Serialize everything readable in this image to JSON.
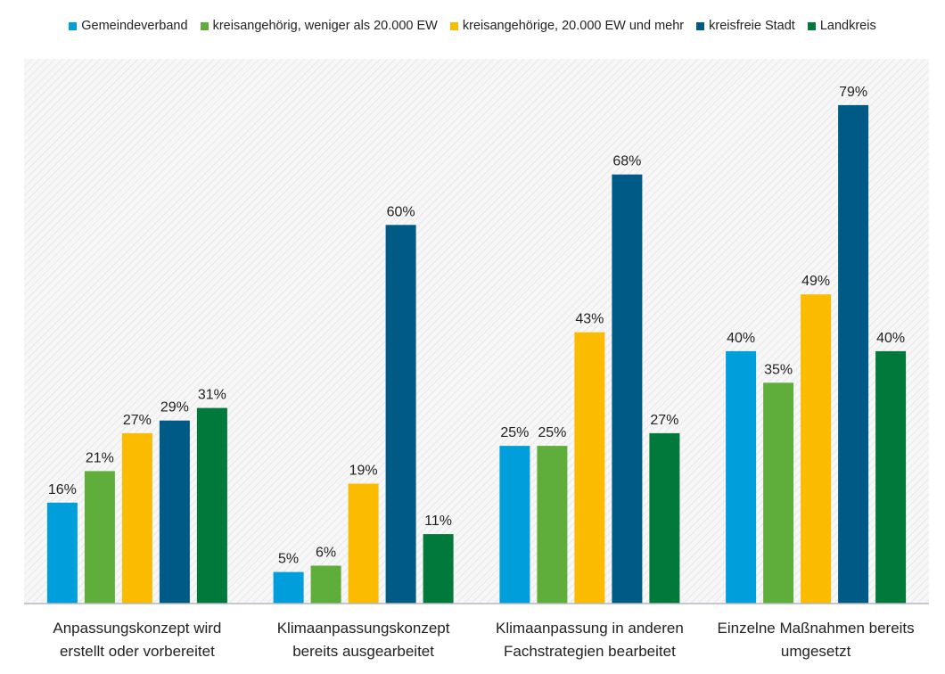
{
  "chart_data": {
    "type": "bar",
    "categories": [
      [
        "Anpassungskonzept wird",
        "erstellt oder vorbereitet"
      ],
      [
        "Klimaanpassungskonzept",
        "bereits ausgearbeitet"
      ],
      [
        "Klimaanpassung in anderen",
        "Fachstrategien bearbeitet"
      ],
      [
        "Einzelne Maßnahmen bereits",
        "umgesetzt"
      ]
    ],
    "series": [
      {
        "name": "Gemeindeverband",
        "color": "#009fdb",
        "values": [
          16,
          5,
          25,
          40
        ]
      },
      {
        "name": "kreisangehörig, weniger als 20.000 EW",
        "color": "#5fae3b",
        "values": [
          21,
          6,
          25,
          35
        ]
      },
      {
        "name": "kreisangehörige, 20.000 EW und mehr",
        "color": "#fbbb00",
        "values": [
          27,
          19,
          43,
          49
        ]
      },
      {
        "name": "kreisfreie Stadt",
        "color": "#005a86",
        "values": [
          29,
          60,
          68,
          79
        ]
      },
      {
        "name": "Landkreis",
        "color": "#00793a",
        "values": [
          31,
          11,
          27,
          40
        ]
      }
    ],
    "value_suffix": "%",
    "ylim": [
      0,
      90
    ],
    "grid": false,
    "legend_position": "top"
  }
}
